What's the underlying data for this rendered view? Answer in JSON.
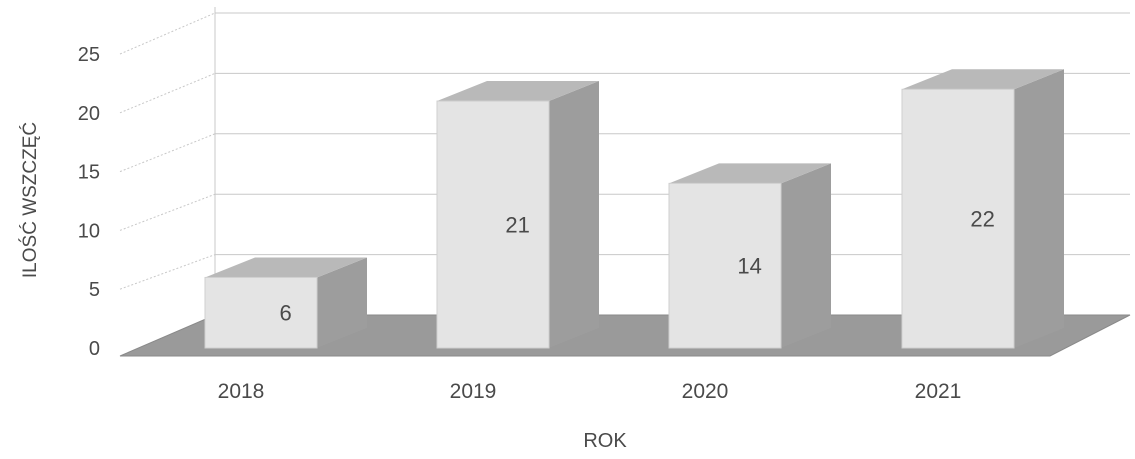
{
  "chart_data": {
    "type": "bar",
    "categories": [
      "2018",
      "2019",
      "2020",
      "2021"
    ],
    "values": [
      6,
      21,
      14,
      22
    ],
    "data_labels": [
      "6",
      "21",
      "14",
      "22"
    ],
    "xlabel": "ROK",
    "ylabel": "ILOŚĆ WSZCZĘĆ",
    "ylim": [
      0,
      25
    ],
    "yticks": [
      "0",
      "5",
      "10",
      "15",
      "20",
      "25"
    ],
    "grid": true,
    "style": "3d-column",
    "colors": {
      "bar_front": "#e4e4e4",
      "bar_side": "#9d9d9d",
      "bar_top": "#b9b9b9",
      "floor": "#9a9a9a",
      "grid": "#c8c8c8",
      "text": "#4a4a4a"
    }
  }
}
